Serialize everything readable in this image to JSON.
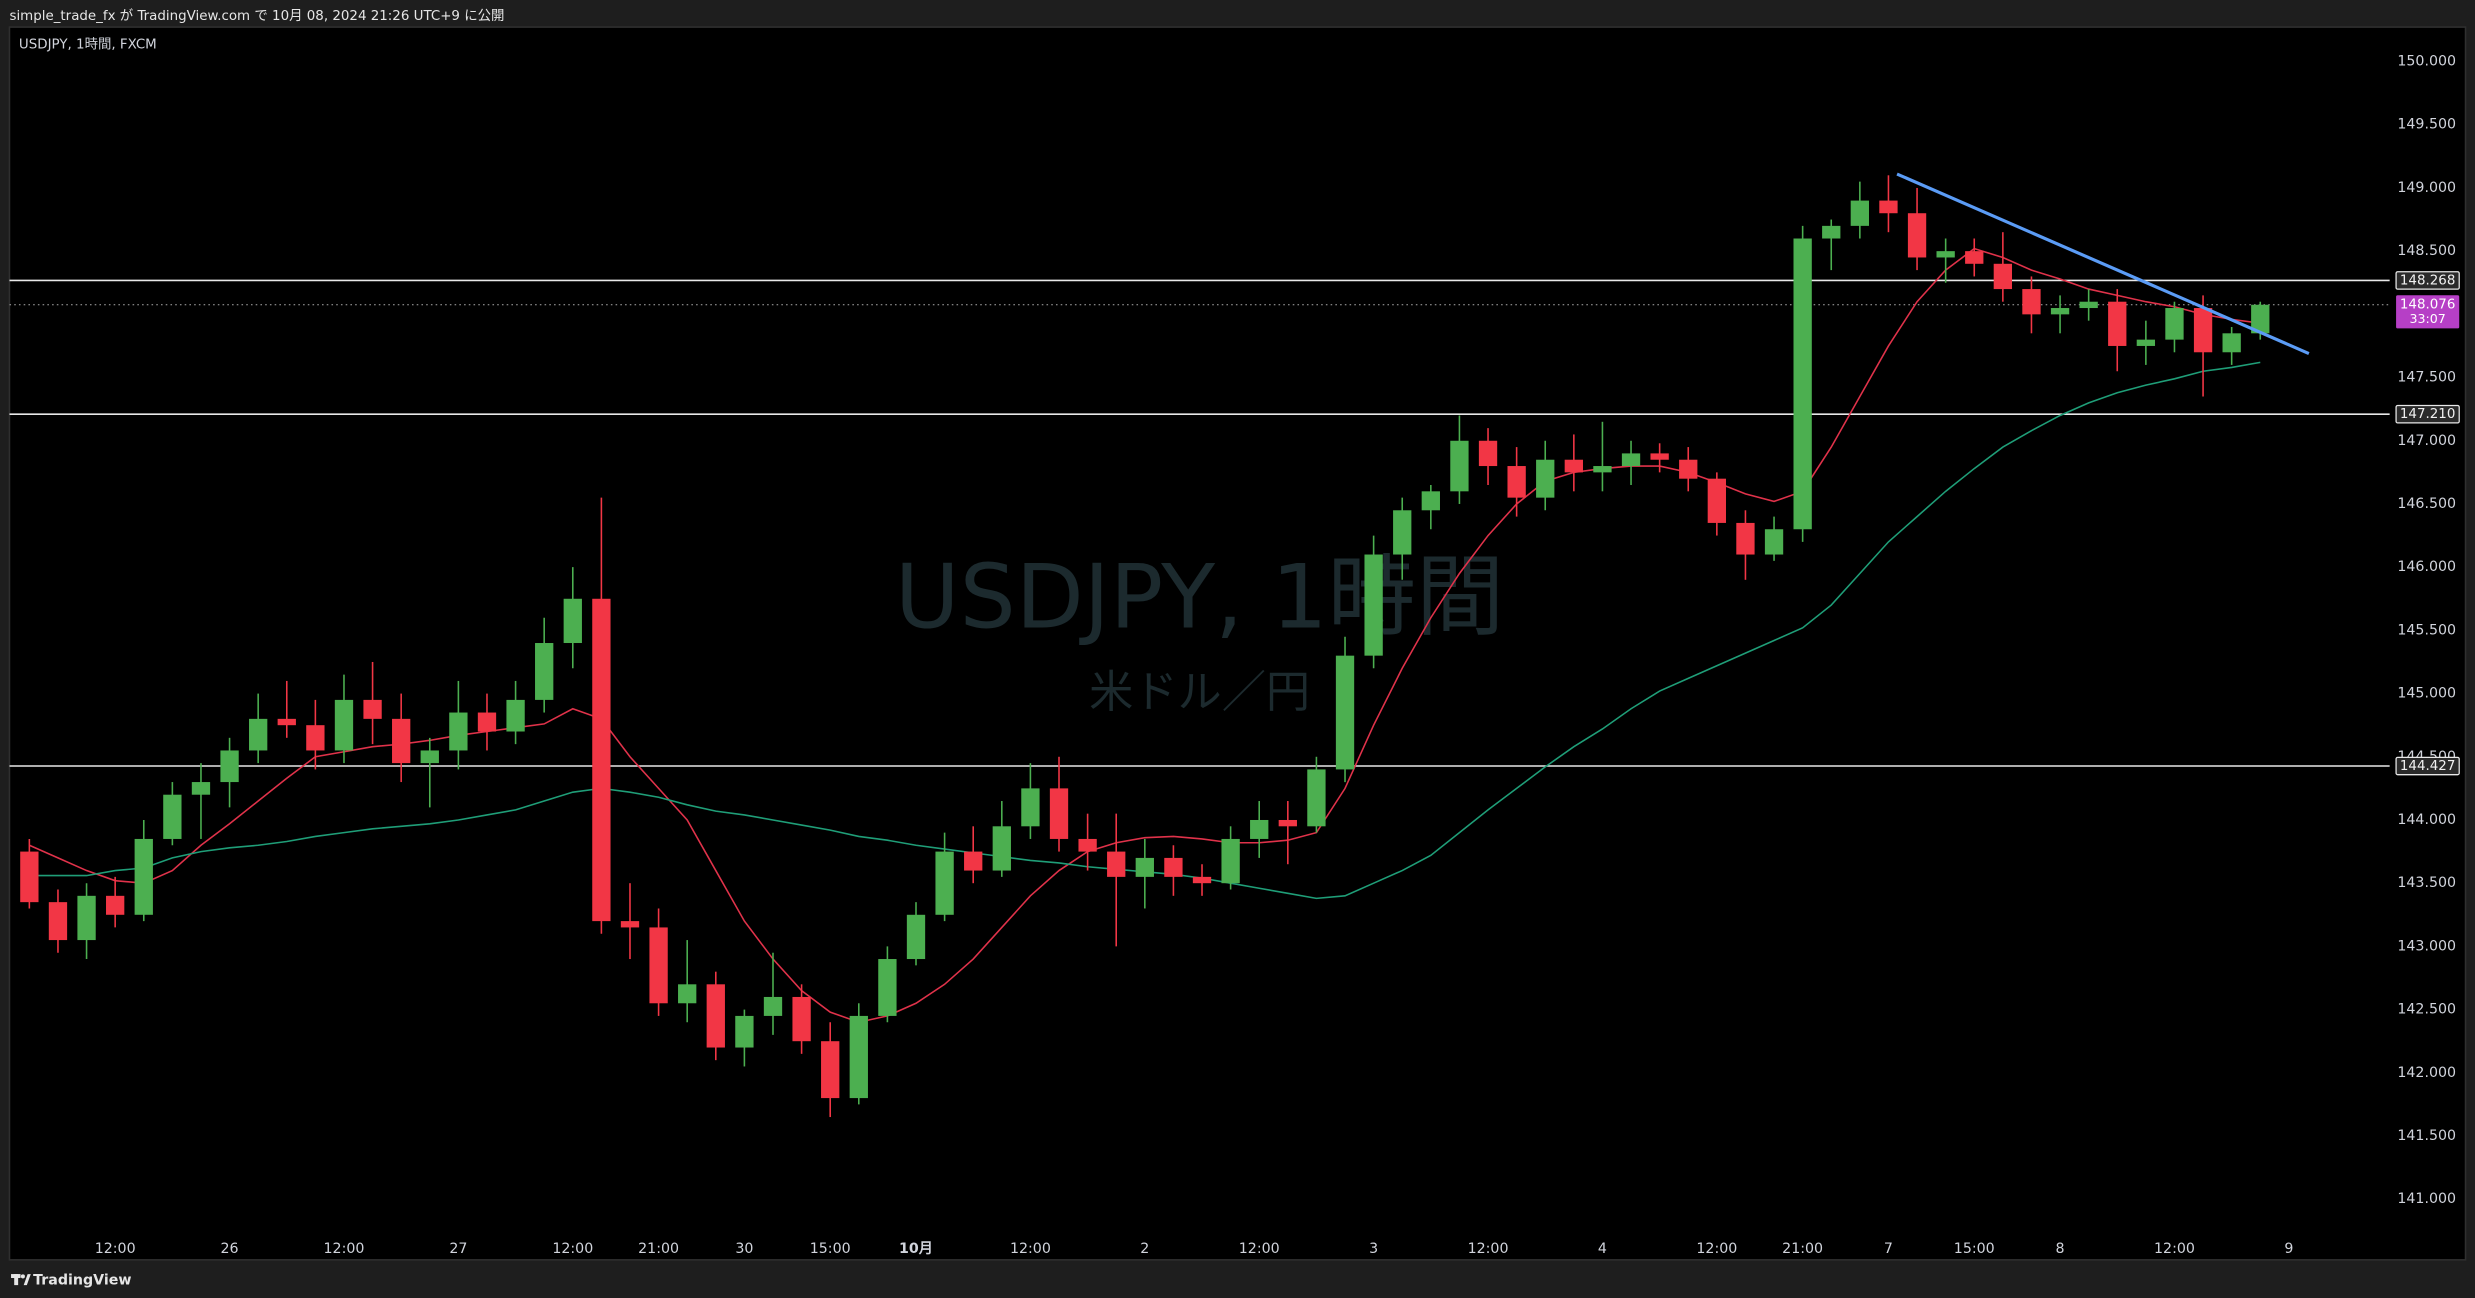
{
  "header": "simple_trade_fx が TradingView.com で 10月 08, 2024 21:26 UTC+9 に公開",
  "footer": "TradingView",
  "chart_data": {
    "type": "candlestick",
    "symbol_label": "USDJPY, 1時間, FXCM",
    "watermark": "USDJPY, 1時間",
    "watermark_subtitle": "米ドル／円",
    "categories": [
      null,
      null,
      null,
      "12:00",
      null,
      null,
      null,
      "26",
      null,
      null,
      null,
      "12:00",
      null,
      null,
      null,
      "27",
      null,
      null,
      null,
      "12:00",
      null,
      null,
      "21:00",
      null,
      null,
      "30",
      null,
      null,
      "15:00",
      null,
      null,
      "10月",
      null,
      null,
      null,
      "12:00",
      null,
      null,
      null,
      "2",
      null,
      null,
      null,
      "12:00",
      null,
      null,
      null,
      "3",
      null,
      null,
      null,
      "12:00",
      null,
      null,
      null,
      "4",
      null,
      null,
      null,
      "12:00",
      null,
      null,
      "21:00",
      null,
      null,
      "7",
      null,
      null,
      "15:00",
      null,
      null,
      "8",
      null,
      null,
      null,
      "12:00",
      null,
      null,
      null,
      "9"
    ],
    "open": [
      143.75,
      143.35,
      143.05,
      143.4,
      143.25,
      143.85,
      144.2,
      144.3,
      144.55,
      144.8,
      144.75,
      144.55,
      144.95,
      144.8,
      144.45,
      144.55,
      144.85,
      144.7,
      144.95,
      145.4,
      145.75,
      143.2,
      143.15,
      142.55,
      142.7,
      142.2,
      142.45,
      142.6,
      142.25,
      141.8,
      142.45,
      142.9,
      143.25,
      143.75,
      143.6,
      143.95,
      144.25,
      143.85,
      143.75,
      143.55,
      143.7,
      143.55,
      143.5,
      143.85,
      144.0,
      143.95,
      144.4,
      145.3,
      146.1,
      146.45,
      146.6,
      147.0,
      146.8,
      146.55,
      146.85,
      146.75,
      146.8,
      146.9,
      146.85,
      146.7,
      146.35,
      146.1,
      146.3,
      148.6,
      148.7,
      148.9,
      148.8,
      148.45,
      148.5,
      148.4,
      148.2,
      148.0,
      148.05,
      148.1,
      147.75,
      147.8,
      148.05,
      147.7,
      147.85,
      null
    ],
    "high": [
      143.85,
      143.45,
      143.5,
      143.55,
      144.0,
      144.3,
      144.45,
      144.65,
      145.0,
      145.1,
      144.95,
      145.15,
      145.25,
      145.0,
      144.65,
      145.1,
      145.0,
      145.1,
      145.6,
      146.0,
      146.55,
      143.5,
      143.3,
      143.05,
      142.8,
      142.5,
      142.95,
      142.7,
      142.4,
      142.55,
      143.0,
      143.35,
      143.9,
      143.95,
      144.15,
      144.45,
      144.5,
      144.05,
      144.05,
      143.85,
      143.8,
      143.65,
      143.95,
      144.15,
      144.15,
      144.5,
      145.45,
      146.25,
      146.55,
      146.65,
      147.2,
      147.1,
      146.95,
      147.0,
      147.05,
      147.15,
      147.0,
      146.98,
      146.95,
      146.75,
      146.45,
      146.4,
      148.7,
      148.75,
      149.05,
      149.1,
      149.0,
      148.6,
      148.6,
      148.65,
      148.3,
      148.15,
      148.2,
      148.2,
      147.95,
      148.1,
      148.15,
      147.9,
      148.1,
      null
    ],
    "low": [
      143.3,
      142.95,
      142.9,
      143.15,
      143.2,
      143.8,
      143.85,
      144.1,
      144.45,
      144.65,
      144.4,
      144.45,
      144.6,
      144.3,
      144.1,
      144.4,
      144.55,
      144.6,
      144.85,
      145.2,
      143.1,
      142.9,
      142.45,
      142.4,
      142.1,
      142.05,
      142.3,
      142.15,
      141.65,
      141.75,
      142.4,
      142.85,
      143.2,
      143.5,
      143.55,
      143.85,
      143.75,
      143.6,
      143.0,
      143.3,
      143.4,
      143.4,
      143.45,
      143.7,
      143.65,
      143.9,
      144.3,
      145.2,
      145.9,
      146.3,
      146.5,
      146.65,
      146.4,
      146.45,
      146.6,
      146.6,
      146.65,
      146.75,
      146.6,
      146.25,
      145.9,
      146.05,
      146.2,
      148.35,
      148.6,
      148.65,
      148.35,
      148.25,
      148.3,
      148.1,
      147.85,
      147.85,
      147.95,
      147.55,
      147.6,
      147.7,
      147.35,
      147.6,
      147.8,
      null
    ],
    "close": [
      143.35,
      143.05,
      143.4,
      143.25,
      143.85,
      144.2,
      144.3,
      144.55,
      144.8,
      144.75,
      144.55,
      144.95,
      144.8,
      144.45,
      144.55,
      144.85,
      144.7,
      144.95,
      145.4,
      145.75,
      143.2,
      143.15,
      142.55,
      142.7,
      142.2,
      142.45,
      142.6,
      142.25,
      141.8,
      142.45,
      142.9,
      143.25,
      143.75,
      143.6,
      143.95,
      144.25,
      143.85,
      143.75,
      143.55,
      143.7,
      143.55,
      143.5,
      143.85,
      144.0,
      143.95,
      144.4,
      145.3,
      146.1,
      146.45,
      146.6,
      147.0,
      146.8,
      146.55,
      146.85,
      146.75,
      146.8,
      146.9,
      146.85,
      146.7,
      146.35,
      146.1,
      146.3,
      148.6,
      148.7,
      148.9,
      148.8,
      148.45,
      148.5,
      148.4,
      148.2,
      148.0,
      148.05,
      148.1,
      147.75,
      147.8,
      148.05,
      147.7,
      147.85,
      148.076,
      null
    ],
    "up_color": "#4caf50",
    "down_color": "#f23645",
    "overlays": [
      {
        "color": "#e0324a",
        "values": [
          143.8,
          143.7,
          143.6,
          143.52,
          143.5,
          143.6,
          143.8,
          143.97,
          144.15,
          144.33,
          144.5,
          144.54,
          144.58,
          144.6,
          144.63,
          144.67,
          144.7,
          144.73,
          144.76,
          144.88,
          144.8,
          144.5,
          144.25,
          144.0,
          143.6,
          143.2,
          142.9,
          142.65,
          142.48,
          142.4,
          142.45,
          142.55,
          142.7,
          142.9,
          143.15,
          143.4,
          143.6,
          143.75,
          143.82,
          143.86,
          143.87,
          143.85,
          143.82,
          143.82,
          143.84,
          143.9,
          144.25,
          144.75,
          145.2,
          145.6,
          145.95,
          146.25,
          146.5,
          146.68,
          146.75,
          146.78,
          146.8,
          146.8,
          146.75,
          146.67,
          146.58,
          146.52,
          146.6,
          146.95,
          147.35,
          147.75,
          148.1,
          148.35,
          148.52,
          148.45,
          148.35,
          148.28,
          148.2,
          148.15,
          148.1,
          148.06,
          148.0,
          147.96,
          147.93,
          null
        ]
      },
      {
        "color": "#1f9e78",
        "values": [
          143.56,
          143.56,
          143.56,
          143.6,
          143.62,
          143.7,
          143.75,
          143.78,
          143.8,
          143.83,
          143.87,
          143.9,
          143.93,
          143.95,
          143.97,
          144.0,
          144.04,
          144.08,
          144.15,
          144.22,
          144.25,
          144.22,
          144.18,
          144.12,
          144.07,
          144.04,
          144.0,
          143.96,
          143.92,
          143.87,
          143.84,
          143.8,
          143.77,
          143.74,
          143.71,
          143.68,
          143.66,
          143.63,
          143.61,
          143.59,
          143.57,
          143.54,
          143.5,
          143.46,
          143.42,
          143.38,
          143.4,
          143.5,
          143.6,
          143.72,
          143.9,
          144.08,
          144.25,
          144.42,
          144.58,
          144.72,
          144.88,
          145.02,
          145.12,
          145.22,
          145.32,
          145.42,
          145.52,
          145.7,
          145.95,
          146.2,
          146.4,
          146.6,
          146.78,
          146.95,
          147.08,
          147.2,
          147.3,
          147.38,
          147.44,
          147.49,
          147.55,
          147.58,
          147.62,
          null
        ]
      }
    ],
    "levels": [
      {
        "value": 148.268,
        "label": "148.268"
      },
      {
        "value": 147.21,
        "label": "147.210"
      },
      {
        "value": 144.427,
        "label": "144.427"
      }
    ],
    "current_price": {
      "value": 148.076,
      "label": "148.076",
      "countdown": "33:07",
      "color": "#b63fc6"
    },
    "trendline": {
      "color": "#5b9cf6",
      "x": [
        65.3,
        79.7
      ],
      "y": [
        149.11,
        147.69
      ]
    },
    "ylim": [
      140.72,
      150.26
    ],
    "yticks": [
      {
        "value": 141,
        "label": "141.000"
      },
      {
        "value": 141.5,
        "label": "141.500"
      },
      {
        "value": 142,
        "label": "142.000"
      },
      {
        "value": 142.5,
        "label": "142.500"
      },
      {
        "value": 143,
        "label": "143.000"
      },
      {
        "value": 143.5,
        "label": "143.500"
      },
      {
        "value": 144,
        "label": "144.000"
      },
      {
        "value": 144.5,
        "label": "144.500"
      },
      {
        "value": 145,
        "label": "145.000"
      },
      {
        "value": 145.5,
        "label": "145.500"
      },
      {
        "value": 146,
        "label": "146.000"
      },
      {
        "value": 146.5,
        "label": "146.500"
      },
      {
        "value": 147,
        "label": "147.000"
      },
      {
        "value": 147.5,
        "label": "147.500"
      },
      {
        "value": 148,
        "label": "148.000"
      },
      {
        "value": 148.5,
        "label": "148.500"
      },
      {
        "value": 149,
        "label": "149.000"
      },
      {
        "value": 149.5,
        "label": "149.500"
      },
      {
        "value": 150,
        "label": "150.000"
      }
    ],
    "grid": false
  }
}
